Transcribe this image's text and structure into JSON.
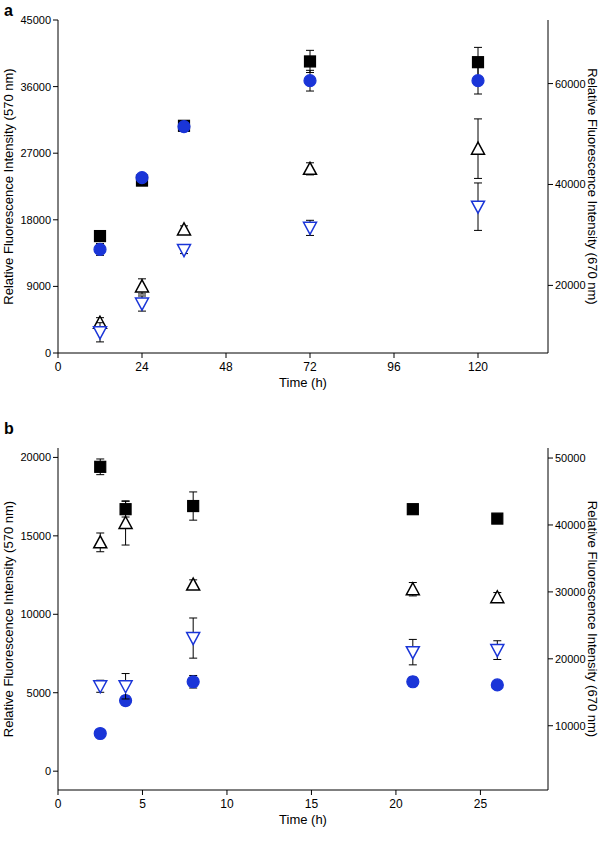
{
  "chart_data": [
    {
      "type": "scatter",
      "title": "a",
      "x_label": "Time (h)",
      "y_label": "Relative Fluorescence Intensity (570 nm)",
      "y2_label": "Relative Fluorescence Intensity (670 nm)",
      "x": [
        12,
        24,
        36,
        72,
        120
      ],
      "xlim": [
        0,
        140
      ],
      "xticks": [
        0,
        24,
        48,
        72,
        96,
        120
      ],
      "ylim": [
        0,
        45000
      ],
      "yticks": [
        0,
        9000,
        18000,
        27000,
        36000,
        45000
      ],
      "y2lim": [
        6600,
        72600
      ],
      "y2ticks": [
        20000,
        40000,
        60000
      ],
      "series": [
        {
          "color": "#000000",
          "marker": "square",
          "values": [
            15800,
            23300,
            30700,
            39400,
            39300
          ],
          "errors": [
            300,
            400,
            300,
            1500,
            2000
          ]
        },
        {
          "color": "#1a35d8",
          "marker": "circle",
          "values": [
            14000,
            23700,
            30600,
            36800,
            36800
          ],
          "errors": [
            800,
            400,
            300,
            1400,
            1800
          ]
        },
        {
          "color": "#000000",
          "marker": "triangle-open",
          "axis": "y2",
          "values": [
            12600,
            19800,
            31100,
            43100,
            47100
          ],
          "errors": [
            1000,
            1500,
            700,
            1200,
            5900
          ]
        },
        {
          "color": "#1a35d8",
          "marker": "triangle-down-open",
          "axis": "y2",
          "values": [
            10700,
            16400,
            27000,
            31400,
            35600
          ],
          "errors": [
            1900,
            1500,
            700,
            1500,
            4700
          ]
        }
      ]
    },
    {
      "type": "scatter",
      "title": "b",
      "x_label": "Time (h)",
      "y_label": "Relative Fluorescence Intensity (570 nm)",
      "y2_label": "Relative Fluorescence Intensity (670 nm)",
      "x": [
        2.5,
        4,
        8,
        21,
        26
      ],
      "xlim": [
        0,
        29
      ],
      "xticks": [
        0,
        5,
        10,
        15,
        20,
        25
      ],
      "ylim": [
        -1200,
        20600
      ],
      "yticks": [
        0,
        5000,
        10000,
        15000,
        20000
      ],
      "y2lim": [
        400,
        51500
      ],
      "y2ticks": [
        10000,
        20000,
        30000,
        40000,
        50000
      ],
      "series": [
        {
          "color": "#000000",
          "marker": "square",
          "values": [
            19400,
            16700,
            16900,
            16700,
            16100
          ],
          "errors": [
            500,
            500,
            900,
            200,
            200
          ]
        },
        {
          "color": "#1a35d8",
          "marker": "circle",
          "values": [
            2400,
            4500,
            5700,
            5700,
            5500
          ],
          "errors": [
            200,
            300,
            400,
            300,
            200
          ]
        },
        {
          "color": "#000000",
          "marker": "triangle-open",
          "axis": "y2",
          "values": [
            37400,
            40300,
            31100,
            30400,
            29200
          ],
          "errors": [
            1400,
            3300,
            700,
            1000,
            700
          ]
        },
        {
          "color": "#1a35d8",
          "marker": "triangle-down-open",
          "axis": "y2",
          "values": [
            15900,
            15900,
            23100,
            21000,
            21300
          ],
          "errors": [
            900,
            1900,
            3000,
            1900,
            1400
          ]
        }
      ]
    }
  ]
}
